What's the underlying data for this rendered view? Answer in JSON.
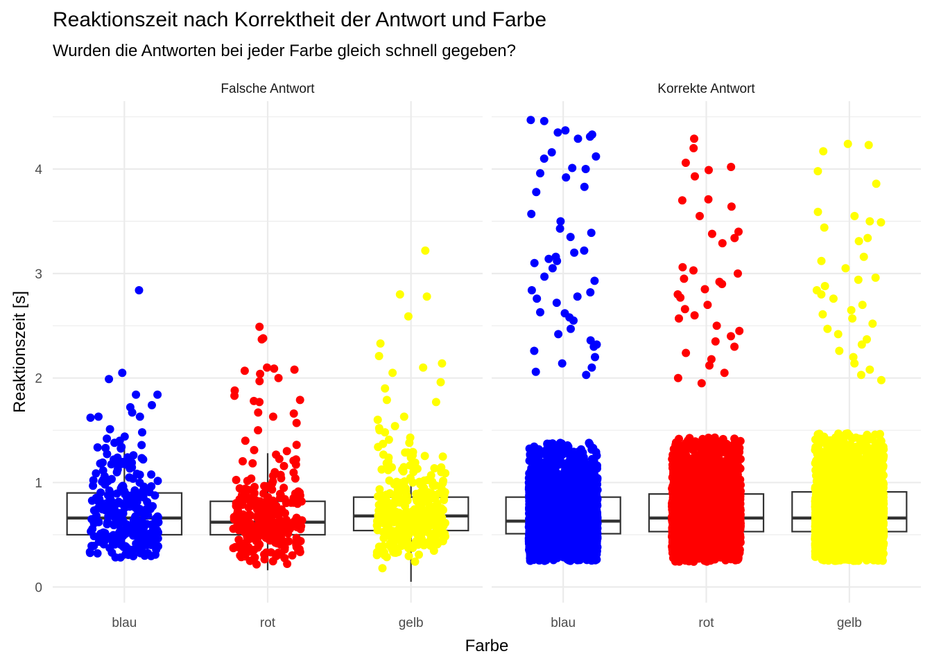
{
  "chart_data": {
    "type": "box+jitter",
    "title": "Reaktionszeit nach Korrektheit der Antwort und Farbe",
    "subtitle": "Wurden die Antworten bei jeder Farbe gleich schnell gegeben?",
    "xlabel": "Farbe",
    "ylabel": "Reaktionszeit [s]",
    "ylim": [
      -0.15,
      4.65
    ],
    "yticks": [
      0,
      1,
      2,
      3,
      4
    ],
    "categories": [
      "blau",
      "rot",
      "gelb"
    ],
    "colors": {
      "blau": "#0000ff",
      "rot": "#ff0000",
      "gelb": "#ffff00"
    },
    "grid": true,
    "legend": "none",
    "panels": [
      {
        "name": "Falsche Antwort",
        "series": [
          {
            "category": "blau",
            "n": 260,
            "box": {
              "q1": 0.5,
              "median": 0.66,
              "q3": 0.9,
              "whisker_low": 0.27,
              "whisker_high": 1.36
            },
            "outliers": [
              2.84,
              2.05,
              1.99,
              1.84,
              1.84,
              1.74,
              1.72,
              1.67,
              1.63,
              1.63,
              1.62,
              1.51,
              1.48,
              1.44,
              1.42,
              1.4,
              1.38
            ]
          },
          {
            "category": "rot",
            "n": 260,
            "box": {
              "q1": 0.5,
              "median": 0.62,
              "q3": 0.82,
              "whisker_low": 0.16,
              "whisker_high": 1.28
            },
            "outliers": [
              2.49,
              2.38,
              2.37,
              2.1,
              2.09,
              2.08,
              2.07,
              2.04,
              2.0,
              1.97,
              1.88,
              1.83,
              1.79,
              1.78,
              1.77,
              1.67,
              1.66,
              1.63,
              1.57,
              1.5,
              1.4,
              1.36,
              1.31,
              1.3
            ]
          },
          {
            "category": "gelb",
            "n": 330,
            "box": {
              "q1": 0.54,
              "median": 0.68,
              "q3": 0.86,
              "whisker_low": 0.05,
              "whisker_high": 1.3
            },
            "outliers": [
              3.22,
              2.8,
              2.78,
              2.59,
              2.33,
              2.21,
              2.14,
              2.1,
              2.05,
              1.96,
              1.9,
              1.79,
              1.77,
              1.63,
              1.6,
              1.54,
              1.52,
              1.5,
              1.48,
              1.43,
              1.41,
              1.38,
              1.37,
              1.34
            ]
          }
        ]
      },
      {
        "name": "Korrekte Antwort",
        "series": [
          {
            "category": "blau",
            "n": 3600,
            "box": {
              "q1": 0.51,
              "median": 0.63,
              "q3": 0.86,
              "whisker_low": 0.25,
              "whisker_high": 1.38
            },
            "outliers": [
              4.47,
              4.46,
              4.37,
              4.35,
              4.33,
              4.31,
              4.29,
              4.16,
              4.12,
              4.1,
              4.01,
              4.0,
              3.96,
              3.92,
              3.83,
              3.78,
              3.57,
              3.5,
              3.43,
              3.39,
              3.35,
              3.22,
              3.2,
              3.16,
              3.14,
              3.12,
              3.1,
              3.05,
              2.97,
              2.93,
              2.84,
              2.82,
              2.78,
              2.76,
              2.72,
              2.63,
              2.62,
              2.58,
              2.55,
              2.47,
              2.42,
              2.36,
              2.32,
              2.3,
              2.26,
              2.2,
              2.14,
              2.1,
              2.06,
              2.03
            ]
          },
          {
            "category": "rot",
            "n": 3600,
            "box": {
              "q1": 0.53,
              "median": 0.66,
              "q3": 0.89,
              "whisker_low": 0.24,
              "whisker_high": 1.43
            },
            "outliers": [
              4.29,
              4.2,
              4.06,
              4.02,
              3.99,
              3.93,
              3.71,
              3.7,
              3.64,
              3.55,
              3.4,
              3.38,
              3.34,
              3.29,
              3.06,
              3.03,
              3.0,
              2.95,
              2.92,
              2.9,
              2.85,
              2.8,
              2.77,
              2.7,
              2.66,
              2.6,
              2.57,
              2.5,
              2.45,
              2.4,
              2.35,
              2.3,
              2.24,
              2.18,
              2.12,
              2.05,
              2.0,
              1.95
            ]
          },
          {
            "category": "gelb",
            "n": 3600,
            "box": {
              "q1": 0.53,
              "median": 0.66,
              "q3": 0.91,
              "whisker_low": 0.25,
              "whisker_high": 1.48
            },
            "outliers": [
              4.24,
              4.23,
              4.17,
              3.98,
              3.86,
              3.59,
              3.55,
              3.5,
              3.49,
              3.44,
              3.34,
              3.31,
              3.16,
              3.12,
              3.05,
              2.96,
              2.94,
              2.88,
              2.84,
              2.8,
              2.76,
              2.7,
              2.65,
              2.61,
              2.57,
              2.52,
              2.47,
              2.42,
              2.37,
              2.32,
              2.26,
              2.2,
              2.14,
              2.08,
              2.03,
              1.98
            ]
          }
        ]
      }
    ]
  }
}
